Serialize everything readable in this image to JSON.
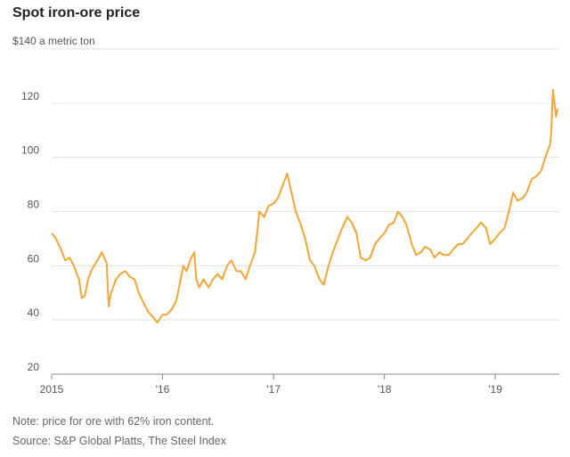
{
  "chart_data": {
    "type": "line",
    "title": "Spot iron-ore price",
    "ylabel_prefix": "$140 a metric ton",
    "y_ticks": [
      20,
      40,
      60,
      80,
      100,
      120
    ],
    "y_tick_labels": [
      "20",
      "40",
      "60",
      "80",
      "100",
      "120"
    ],
    "ylim": [
      20,
      140
    ],
    "xlim": [
      "2015-01-01",
      "2019-07-31"
    ],
    "x_ticks": [
      "2015-01-01",
      "2016-01-01",
      "2017-01-01",
      "2018-01-01",
      "2019-01-01"
    ],
    "x_tick_labels": [
      "2015",
      "'16",
      "'17",
      "'18",
      "'19"
    ],
    "grid": true,
    "line_color": "#f4a535",
    "series": [
      {
        "x": [
          "2015-01-01",
          "2015-01-15",
          "2015-02-01",
          "2015-02-15",
          "2015-03-01",
          "2015-03-15",
          "2015-04-01",
          "2015-04-10",
          "2015-04-20",
          "2015-05-01",
          "2015-05-15",
          "2015-06-01",
          "2015-06-15",
          "2015-07-01",
          "2015-07-08",
          "2015-07-15",
          "2015-08-01",
          "2015-08-15",
          "2015-09-01",
          "2015-09-15",
          "2015-10-01",
          "2015-10-15",
          "2015-11-01",
          "2015-11-15",
          "2015-12-01",
          "2015-12-15",
          "2016-01-01",
          "2016-01-15",
          "2016-02-01",
          "2016-02-15",
          "2016-03-01",
          "2016-03-10",
          "2016-03-20",
          "2016-04-01",
          "2016-04-15",
          "2016-04-21",
          "2016-05-01",
          "2016-05-15",
          "2016-06-01",
          "2016-06-15",
          "2016-07-01",
          "2016-07-15",
          "2016-08-01",
          "2016-08-15",
          "2016-09-01",
          "2016-09-15",
          "2016-10-01",
          "2016-10-15",
          "2016-11-01",
          "2016-11-15",
          "2016-12-01",
          "2016-12-15",
          "2017-01-01",
          "2017-01-15",
          "2017-02-01",
          "2017-02-15",
          "2017-03-01",
          "2017-03-15",
          "2017-04-01",
          "2017-04-15",
          "2017-05-01",
          "2017-05-15",
          "2017-06-01",
          "2017-06-15",
          "2017-07-01",
          "2017-07-15",
          "2017-08-01",
          "2017-08-15",
          "2017-09-01",
          "2017-09-15",
          "2017-10-01",
          "2017-10-15",
          "2017-11-01",
          "2017-11-15",
          "2017-12-01",
          "2017-12-15",
          "2018-01-01",
          "2018-01-15",
          "2018-02-01",
          "2018-02-15",
          "2018-03-01",
          "2018-03-15",
          "2018-04-01",
          "2018-04-15",
          "2018-05-01",
          "2018-05-15",
          "2018-06-01",
          "2018-06-15",
          "2018-07-01",
          "2018-07-15",
          "2018-08-01",
          "2018-08-15",
          "2018-09-01",
          "2018-09-15",
          "2018-10-01",
          "2018-10-15",
          "2018-11-01",
          "2018-11-15",
          "2018-12-01",
          "2018-12-15",
          "2019-01-01",
          "2019-01-15",
          "2019-02-01",
          "2019-02-15",
          "2019-03-01",
          "2019-03-15",
          "2019-04-01",
          "2019-04-15",
          "2019-05-01",
          "2019-05-15",
          "2019-06-01",
          "2019-06-15",
          "2019-07-01",
          "2019-07-05",
          "2019-07-10",
          "2019-07-15",
          "2019-07-20",
          "2019-07-25"
        ],
        "values": [
          72,
          70,
          66,
          62,
          63,
          60,
          55,
          48,
          49,
          55,
          59,
          62,
          65,
          61,
          45,
          50,
          55,
          57,
          58,
          56,
          55,
          50,
          46,
          43,
          41,
          39,
          42,
          42,
          44,
          47,
          55,
          60,
          58,
          62,
          65,
          55,
          52,
          55,
          52,
          55,
          57,
          55,
          60,
          62,
          58,
          58,
          55,
          60,
          65,
          80,
          78,
          82,
          83,
          85,
          90,
          94,
          87,
          80,
          75,
          70,
          62,
          60,
          55,
          53,
          60,
          65,
          70,
          74,
          78,
          76,
          72,
          63,
          62,
          63,
          68,
          70,
          72,
          75,
          76,
          80,
          78,
          75,
          68,
          64,
          65,
          67,
          66,
          63,
          65,
          64,
          64,
          66,
          68,
          68,
          70,
          72,
          74,
          76,
          74,
          68,
          70,
          72,
          74,
          80,
          87,
          84,
          85,
          87,
          92,
          93,
          95,
          100,
          105,
          110,
          125,
          120,
          115,
          118
        ]
      }
    ]
  },
  "notes": {
    "note": "Note: price for ore with 62% iron content.",
    "source": "Source: S&P Global Platts, The Steel Index"
  }
}
